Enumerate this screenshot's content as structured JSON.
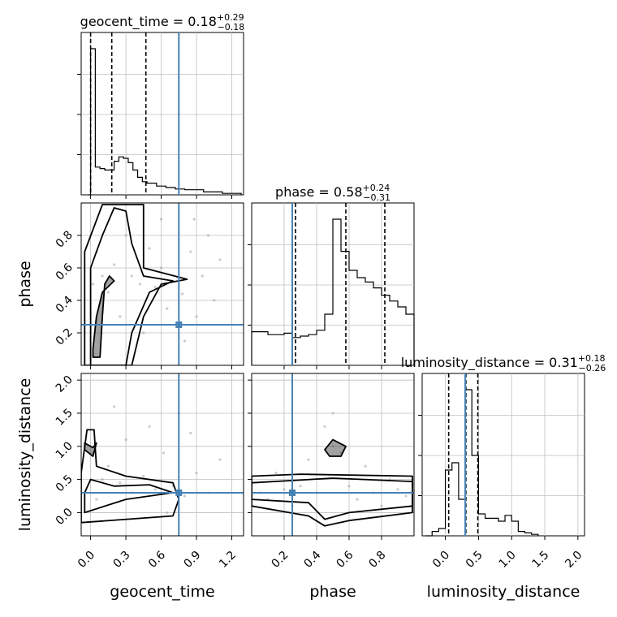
{
  "chart_data": {
    "type": "corner",
    "parameters": [
      "geocent_time",
      "phase",
      "luminosity_distance"
    ],
    "axis_labels": {
      "x": [
        "geocent_time",
        "phase",
        "luminosity_distance"
      ],
      "y": [
        "phase",
        "luminosity_distance"
      ]
    },
    "titles": [
      {
        "param": "geocent_time",
        "prefix": "geocent_time = ",
        "median": "0.18",
        "plus": "+0.29",
        "minus": "−0.18"
      },
      {
        "param": "phase",
        "prefix": "phase = ",
        "median": "0.58",
        "plus": "+0.24",
        "minus": "−0.31"
      },
      {
        "param": "luminosity_distance",
        "prefix": "luminosity_distance = ",
        "median": "0.31",
        "plus": "+0.18",
        "minus": "−0.26"
      }
    ],
    "ranges": {
      "geocent_time": [
        -0.08,
        1.3
      ],
      "phase": [
        0.0,
        1.0
      ],
      "luminosity_distance": [
        -0.35,
        2.1
      ]
    },
    "ticks": {
      "geocent_time": [
        0.0,
        0.3,
        0.6,
        0.9,
        1.2
      ],
      "phase_x": [
        0.2,
        0.4,
        0.6,
        0.8
      ],
      "phase_y": [
        0.2,
        0.4,
        0.6,
        0.8
      ],
      "luminosity_distance_x": [
        0.0,
        0.5,
        1.0,
        1.5,
        2.0
      ],
      "luminosity_distance_y": [
        0.0,
        0.5,
        1.0,
        1.5,
        2.0
      ]
    },
    "tick_labels": {
      "geocent_time": [
        "0.0",
        "0.3",
        "0.6",
        "0.9",
        "1.2"
      ],
      "phase_x": [
        "0.2",
        "0.4",
        "0.6",
        "0.8"
      ],
      "phase_y": [
        "0.2",
        "0.4",
        "0.6",
        "0.8"
      ],
      "luminosity_distance_x": [
        "0.0",
        "0.5",
        "1.0",
        "1.5",
        "2.0"
      ],
      "luminosity_distance_y": [
        "0.0",
        "0.5",
        "1.0",
        "1.5",
        "2.0"
      ]
    },
    "truth": {
      "geocent_time": 0.75,
      "phase": 0.25,
      "luminosity_distance": 0.3
    },
    "quantiles": {
      "geocent_time": [
        0.0,
        0.18,
        0.47
      ],
      "phase": [
        0.27,
        0.58,
        0.82
      ],
      "luminosity_distance": [
        0.05,
        0.31,
        0.49
      ]
    },
    "histograms": {
      "geocent_time": {
        "edges": [
          -0.02,
          0.0,
          0.04,
          0.08,
          0.12,
          0.16,
          0.2,
          0.24,
          0.28,
          0.32,
          0.36,
          0.4,
          0.44,
          0.48,
          0.56,
          0.64,
          0.72,
          0.8,
          0.96,
          1.12,
          1.28
        ],
        "counts": [
          0,
          1.0,
          0.19,
          0.18,
          0.17,
          0.17,
          0.23,
          0.26,
          0.25,
          0.22,
          0.17,
          0.12,
          0.09,
          0.08,
          0.06,
          0.05,
          0.04,
          0.035,
          0.02,
          0.01
        ]
      },
      "phase": {
        "edges": [
          0.0,
          0.05,
          0.1,
          0.15,
          0.2,
          0.25,
          0.3,
          0.35,
          0.4,
          0.45,
          0.5,
          0.55,
          0.6,
          0.65,
          0.7,
          0.75,
          0.8,
          0.85,
          0.9,
          0.95,
          1.0
        ],
        "counts": [
          0.23,
          0.23,
          0.21,
          0.21,
          0.22,
          0.19,
          0.2,
          0.21,
          0.24,
          0.35,
          1.0,
          0.78,
          0.65,
          0.6,
          0.57,
          0.53,
          0.48,
          0.44,
          0.4,
          0.35
        ]
      },
      "luminosity_distance": {
        "edges": [
          -0.3,
          -0.2,
          -0.1,
          0.0,
          0.1,
          0.2,
          0.3,
          0.4,
          0.5,
          0.6,
          0.7,
          0.8,
          0.9,
          1.0,
          1.1,
          1.2,
          1.3,
          1.4
        ],
        "counts": [
          0,
          0.03,
          0.05,
          0.45,
          0.5,
          0.25,
          1.0,
          0.55,
          0.15,
          0.12,
          0.12,
          0.1,
          0.14,
          0.1,
          0.03,
          0.02,
          0.01
        ]
      }
    },
    "scatter_points": {
      "phase_vs_geocent_time": [
        [
          0.02,
          0.5
        ],
        [
          0.05,
          0.7
        ],
        [
          0.1,
          0.55
        ],
        [
          0.15,
          0.45
        ],
        [
          0.2,
          0.62
        ],
        [
          0.25,
          0.3
        ],
        [
          0.3,
          0.8
        ],
        [
          0.35,
          0.55
        ],
        [
          0.42,
          0.5
        ],
        [
          0.5,
          0.72
        ],
        [
          0.55,
          0.48
        ],
        [
          0.6,
          0.6
        ],
        [
          0.65,
          0.35
        ],
        [
          0.7,
          0.52
        ],
        [
          0.78,
          0.44
        ],
        [
          0.85,
          0.7
        ],
        [
          0.9,
          0.3
        ],
        [
          0.95,
          0.55
        ],
        [
          1.0,
          0.8
        ],
        [
          1.05,
          0.4
        ],
        [
          0.8,
          0.15
        ],
        [
          0.6,
          0.9
        ],
        [
          0.45,
          0.2
        ],
        [
          0.72,
          0.25
        ],
        [
          1.1,
          0.65
        ],
        [
          0.88,
          0.9
        ]
      ],
      "luminosity_distance_vs_geocent_time": [
        [
          0.02,
          0.9
        ],
        [
          0.05,
          0.2
        ],
        [
          0.1,
          0.5
        ],
        [
          0.15,
          0.7
        ],
        [
          0.25,
          0.45
        ],
        [
          0.35,
          0.3
        ],
        [
          0.45,
          0.55
        ],
        [
          0.55,
          0.35
        ],
        [
          0.62,
          0.9
        ],
        [
          0.7,
          0.4
        ],
        [
          0.8,
          0.25
        ],
        [
          0.9,
          0.6
        ],
        [
          1.0,
          0.3
        ],
        [
          1.1,
          0.8
        ],
        [
          0.5,
          1.3
        ],
        [
          0.3,
          1.1
        ],
        [
          0.75,
          1.5
        ],
        [
          0.2,
          1.6
        ],
        [
          0.65,
          0.0
        ],
        [
          0.85,
          1.2
        ]
      ],
      "luminosity_distance_vs_phase": [
        [
          0.05,
          0.3
        ],
        [
          0.1,
          0.2
        ],
        [
          0.15,
          0.6
        ],
        [
          0.2,
          0.35
        ],
        [
          0.25,
          0.1
        ],
        [
          0.3,
          0.4
        ],
        [
          0.35,
          0.8
        ],
        [
          0.4,
          0.3
        ],
        [
          0.45,
          1.3
        ],
        [
          0.5,
          1.0
        ],
        [
          0.55,
          0.9
        ],
        [
          0.6,
          0.4
        ],
        [
          0.65,
          0.2
        ],
        [
          0.7,
          0.7
        ],
        [
          0.75,
          0.3
        ],
        [
          0.8,
          0.1
        ],
        [
          0.85,
          0.5
        ],
        [
          0.9,
          0.35
        ],
        [
          0.95,
          0.25
        ],
        [
          0.5,
          1.5
        ]
      ]
    },
    "contours": {
      "phase_vs_geocent_time": [
        [
          [
            0.02,
            0.05
          ],
          [
            0.08,
            0.05
          ],
          [
            0.1,
            0.3
          ],
          [
            0.12,
            0.5
          ],
          [
            0.16,
            0.55
          ],
          [
            0.2,
            0.52
          ],
          [
            0.1,
            0.45
          ],
          [
            0.05,
            0.3
          ],
          [
            0.02,
            0.1
          ]
        ],
        [
          [
            0.0,
            0.0
          ],
          [
            0.15,
            0.0
          ],
          [
            0.3,
            0.0
          ],
          [
            0.35,
            0.2
          ],
          [
            0.5,
            0.45
          ],
          [
            0.7,
            0.52
          ],
          [
            0.45,
            0.55
          ],
          [
            0.35,
            0.75
          ],
          [
            0.3,
            0.95
          ],
          [
            0.2,
            0.97
          ],
          [
            0.1,
            0.8
          ],
          [
            0.0,
            0.6
          ]
        ],
        [
          [
            -0.05,
            0.0
          ],
          [
            0.35,
            0.0
          ],
          [
            0.45,
            0.3
          ],
          [
            0.6,
            0.5
          ],
          [
            0.82,
            0.53
          ],
          [
            0.45,
            0.6
          ],
          [
            0.45,
            0.99
          ],
          [
            0.1,
            0.99
          ],
          [
            -0.05,
            0.7
          ]
        ]
      ],
      "luminosity_distance_vs_geocent_time": [
        [
          [
            -0.05,
            1.05
          ],
          [
            0.02,
            0.98
          ],
          [
            0.05,
            1.05
          ],
          [
            0.02,
            0.85
          ],
          [
            -0.05,
            0.95
          ]
        ],
        [
          [
            -0.05,
            0.0
          ],
          [
            0.3,
            0.2
          ],
          [
            0.5,
            0.25
          ],
          [
            0.7,
            0.3
          ],
          [
            0.5,
            0.42
          ],
          [
            0.2,
            0.4
          ],
          [
            0.0,
            0.5
          ],
          [
            -0.05,
            0.3
          ]
        ],
        [
          [
            -0.08,
            -0.15
          ],
          [
            0.7,
            -0.05
          ],
          [
            0.75,
            0.2
          ],
          [
            0.7,
            0.45
          ],
          [
            0.3,
            0.55
          ],
          [
            0.05,
            0.7
          ],
          [
            0.03,
            1.25
          ],
          [
            -0.03,
            1.25
          ],
          [
            -0.08,
            0.6
          ]
        ]
      ],
      "luminosity_distance_vs_phase": [
        [
          [
            0.45,
            0.95
          ],
          [
            0.5,
            1.1
          ],
          [
            0.58,
            1.0
          ],
          [
            0.55,
            0.85
          ],
          [
            0.48,
            0.85
          ]
        ],
        [
          [
            0.0,
            0.45
          ],
          [
            0.5,
            0.52
          ],
          [
            0.99,
            0.47
          ],
          [
            0.99,
            0.1
          ],
          [
            0.6,
            0.0
          ],
          [
            0.45,
            -0.1
          ],
          [
            0.35,
            0.15
          ],
          [
            0.0,
            0.2
          ]
        ],
        [
          [
            0.0,
            0.55
          ],
          [
            0.3,
            0.58
          ],
          [
            0.99,
            0.55
          ],
          [
            0.99,
            0.0
          ],
          [
            0.6,
            -0.12
          ],
          [
            0.45,
            -0.2
          ],
          [
            0.35,
            -0.05
          ],
          [
            0.0,
            0.1
          ]
        ]
      ]
    },
    "colors": {
      "truth": "#4682b4",
      "hist": "#000000",
      "scatter": "#a0a0a0",
      "grid": "#bfbfbf"
    }
  }
}
